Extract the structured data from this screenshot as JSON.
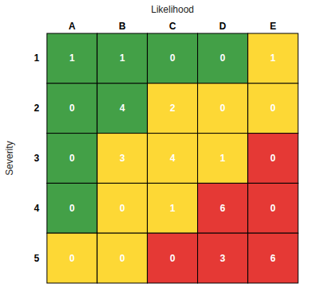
{
  "chart_data": {
    "type": "heatmap",
    "x_label": "Likelihood",
    "y_label": "Severity",
    "x_categories": [
      "A",
      "B",
      "C",
      "D",
      "E"
    ],
    "y_categories": [
      "1",
      "2",
      "3",
      "4",
      "5"
    ],
    "cells": [
      [
        1,
        1,
        0,
        0,
        1
      ],
      [
        0,
        4,
        2,
        0,
        0
      ],
      [
        0,
        3,
        4,
        1,
        0
      ],
      [
        0,
        0,
        1,
        6,
        0
      ],
      [
        0,
        0,
        0,
        3,
        6
      ]
    ],
    "colors": [
      [
        "#43a047",
        "#43a047",
        "#43a047",
        "#43a047",
        "#fdd835"
      ],
      [
        "#43a047",
        "#43a047",
        "#fdd835",
        "#fdd835",
        "#fdd835"
      ],
      [
        "#43a047",
        "#fdd835",
        "#fdd835",
        "#fdd835",
        "#e53935"
      ],
      [
        "#43a047",
        "#fdd835",
        "#fdd835",
        "#e53935",
        "#e53935"
      ],
      [
        "#fdd835",
        "#fdd835",
        "#e53935",
        "#e53935",
        "#e53935"
      ]
    ],
    "data_labels": true
  }
}
